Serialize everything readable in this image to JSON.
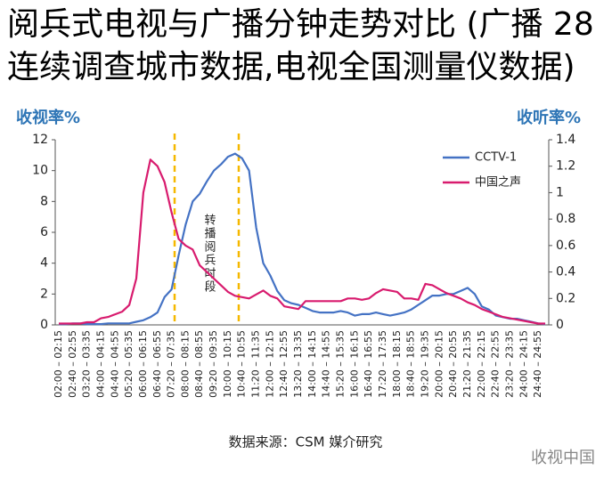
{
  "chart_data": {
    "type": "line",
    "title": "阅兵式电视与广播分钟走势对比 (广播 28连续调查城市数据,电视全国测量仪数据)",
    "ylabel": "收视率%",
    "y2label": "收听率%",
    "annotation": "转播阅兵时段",
    "source": "数据来源：CSM 媒介研究",
    "watermark": "收视中国",
    "categories": [
      "02:00 – 02:15",
      null,
      "02:40 – 02:55",
      null,
      "03:20 – 03:35",
      null,
      "04:00 – 04:15",
      null,
      "04:40 – 04:55",
      null,
      "05:20 – 05:35",
      null,
      "06:00 – 06:15",
      null,
      "06:40 – 06:55",
      null,
      "07:20 – 07:35",
      null,
      "08:00 – 08:15",
      null,
      "08:40 – 08:55",
      null,
      "09:20 – 09:35",
      null,
      "10:00 – 10:15",
      null,
      "10:40 – 10:55",
      null,
      "11:20 – 11:35",
      null,
      "12:00 – 12:15",
      null,
      "12:40 – 12:55",
      null,
      "13:20 – 13:35",
      null,
      "14:00 – 14:15",
      null,
      "14:40 – 14:55",
      null,
      "15:20 – 15:35",
      null,
      "16:00 – 16:15",
      null,
      "16:40 – 16:55",
      null,
      "17:20 – 17:35",
      null,
      "18:00 – 18:15",
      null,
      "18:40 – 18:55",
      null,
      "19:20 – 19:35",
      null,
      "20:00 – 20:15",
      null,
      "20:40 – 20:55",
      null,
      "21:20 – 21:35",
      null,
      "22:00 – 22:15",
      null,
      "22:40 – 22:55",
      null,
      "23:20 – 23:35",
      null,
      "24:00 – 24:15",
      null,
      "24:40 – 24:55",
      null
    ],
    "series": [
      {
        "name": "CCTV-1",
        "color": "#4472c4",
        "axis": "y",
        "values": [
          0.05,
          0.05,
          0.1,
          0.1,
          0.05,
          0.05,
          0.05,
          0.1,
          0.1,
          0.1,
          0.1,
          0.2,
          0.3,
          0.5,
          0.8,
          1.8,
          2.3,
          4.5,
          6.5,
          8,
          8.5,
          9.3,
          10,
          10.4,
          10.9,
          11.1,
          10.8,
          10,
          6.3,
          4,
          3.2,
          2.2,
          1.6,
          1.4,
          1.3,
          1.1,
          0.9,
          0.8,
          0.8,
          0.8,
          0.9,
          0.8,
          0.6,
          0.7,
          0.7,
          0.8,
          0.7,
          0.6,
          0.7,
          0.8,
          1,
          1.3,
          1.6,
          1.9,
          1.9,
          2,
          2,
          2.2,
          2.4,
          2,
          1.2,
          1,
          0.6,
          0.5,
          0.4,
          0.4,
          0.3,
          0.2,
          0.1,
          0.05
        ]
      },
      {
        "name": "中国之声",
        "color": "#d81b6e",
        "axis": "y2",
        "values": [
          0.01,
          0.01,
          0.01,
          0.01,
          0.02,
          0.02,
          0.05,
          0.06,
          0.08,
          0.1,
          0.15,
          0.35,
          1,
          1.25,
          1.2,
          1.08,
          0.85,
          0.65,
          0.6,
          0.57,
          0.45,
          0.4,
          0.35,
          0.3,
          0.25,
          0.22,
          0.21,
          0.2,
          0.23,
          0.26,
          0.22,
          0.2,
          0.14,
          0.13,
          0.12,
          0.18,
          0.18,
          0.18,
          0.18,
          0.18,
          0.18,
          0.2,
          0.2,
          0.19,
          0.2,
          0.24,
          0.27,
          0.26,
          0.25,
          0.2,
          0.2,
          0.19,
          0.31,
          0.3,
          0.27,
          0.24,
          0.22,
          0.2,
          0.17,
          0.15,
          0.12,
          0.1,
          0.08,
          0.06,
          0.05,
          0.04,
          0.03,
          0.02,
          0.01,
          0.01
        ]
      }
    ],
    "ylim": [
      0,
      12
    ],
    "yticks": [
      0,
      2,
      4,
      6,
      8,
      10,
      12
    ],
    "y2lim": [
      0,
      1.4
    ],
    "y2ticks": [
      0,
      0.2,
      0.4,
      0.6,
      0.8,
      1,
      1.2,
      1.4
    ],
    "grid": false,
    "legend": "upper right"
  }
}
